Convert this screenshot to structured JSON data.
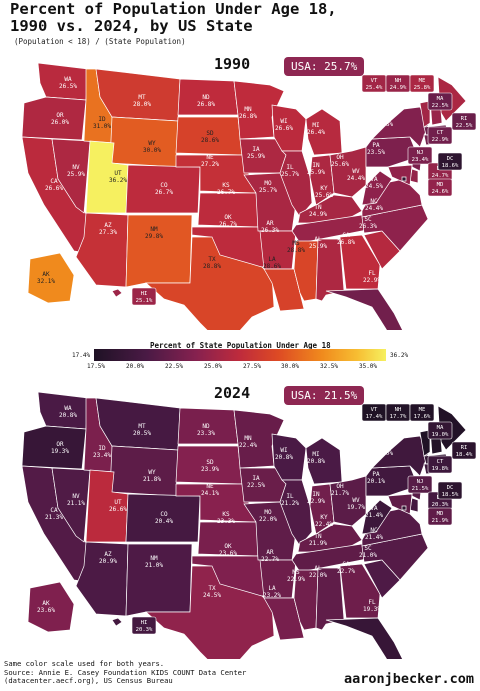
{
  "header": {
    "title": "Percent of Population Under Age 18,\n   1990 vs. 2024, by US State",
    "subtitle": "(Population < 18) / (State Population)"
  },
  "colors": {
    "badge": "#8e2752",
    "ne_callout": "#6e2048"
  },
  "maps": [
    {
      "year": "1990",
      "usa_label": "USA: 25.7%",
      "state_values": {
        "WA": "26.5%",
        "OR": "26.0%",
        "CA": "26.6%",
        "NV": "25.9%",
        "ID": "31.0%",
        "MT": "28.0%",
        "WY": "30.0%",
        "UT": "36.2%",
        "AZ": "27.3%",
        "CO": "26.7%",
        "NM": "29.8%",
        "ND": "26.8%",
        "SD": "28.6%",
        "NE": "27.2%",
        "KS": "26.7%",
        "OK": "26.7%",
        "TX": "28.8%",
        "MN": "26.8%",
        "IA": "25.9%",
        "MO": "25.7%",
        "AR": "26.3%",
        "LA": "28.6%",
        "WI": "26.6%",
        "IL": "25.7%",
        "MI": "26.4%",
        "IN": "25.9%",
        "OH": "25.6%",
        "KY": "25.6%",
        "TN": "24.9%",
        "MS": "28.8%",
        "AL": "25.9%",
        "GA": "26.8%",
        "FL": "22.9%",
        "SC": "26.3%",
        "NC": "24.4%",
        "VA": "24.5%",
        "WV": "24.4%",
        "PA": "23.5%",
        "NY": "23.8%",
        "ME": "25.8%",
        "VT": "25.4%",
        "NH": "24.9%",
        "MA": "22.5%",
        "RI": "22.5%",
        "CT": "22.9%",
        "NJ": "23.4%",
        "DE": "24.7%",
        "MD": "24.6%",
        "DC": "18.6%",
        "AK": "32.1%",
        "HI": "25.1%"
      }
    },
    {
      "year": "2024",
      "usa_label": "USA: 21.5%",
      "state_values": {
        "WA": "20.8%",
        "OR": "19.3%",
        "CA": "21.3%",
        "NV": "21.1%",
        "ID": "23.4%",
        "MT": "20.5%",
        "WY": "21.8%",
        "UT": "26.6%",
        "AZ": "20.9%",
        "CO": "20.4%",
        "NM": "21.0%",
        "ND": "23.3%",
        "SD": "23.9%",
        "NE": "24.1%",
        "KS": "23.3%",
        "OK": "23.6%",
        "TX": "24.5%",
        "MN": "22.4%",
        "IA": "22.5%",
        "MO": "22.0%",
        "AR": "22.7%",
        "LA": "23.2%",
        "WI": "20.8%",
        "IL": "21.2%",
        "MI": "20.8%",
        "IN": "22.9%",
        "OH": "21.7%",
        "KY": "22.4%",
        "TN": "21.9%",
        "MS": "22.9%",
        "AL": "22.0%",
        "GA": "22.7%",
        "FL": "19.3%",
        "SC": "21.0%",
        "NC": "21.4%",
        "VA": "21.4%",
        "WV": "19.7%",
        "PA": "20.1%",
        "NY": "20.0%",
        "ME": "17.6%",
        "VT": "17.4%",
        "NH": "17.7%",
        "MA": "19.0%",
        "RI": "18.4%",
        "CT": "19.8%",
        "NJ": "21.5%",
        "DE": "20.3%",
        "MD": "21.9%",
        "DC": "18.5%",
        "AK": "23.6%",
        "HI": "20.3%"
      }
    }
  ],
  "colorbar": {
    "title": "Percent of State Population Under Age 18",
    "min_label": "17.4%",
    "max_label": "36.2%",
    "ticks": [
      "17.5%",
      "20.0%",
      "22.5%",
      "25.0%",
      "27.5%",
      "30.0%",
      "32.5%",
      "35.0%"
    ]
  },
  "footer": {
    "text": "Same color scale used for both years.\nSource: Annie E. Casey Foundation KIDS COUNT Data Center\n     (datacenter.aecf.org), US Census Bureau",
    "brand": "aaronjbecker.com"
  }
}
